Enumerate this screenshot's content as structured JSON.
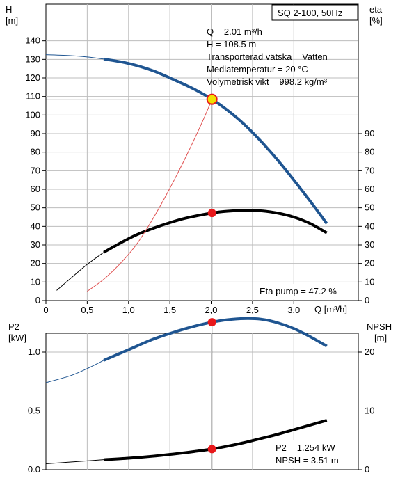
{
  "chart_data": [
    {
      "type": "line",
      "title": "SQ 2-100, 50Hz",
      "y_left": {
        "label_top": "H",
        "label_unit": "[m]",
        "ticks": [
          0,
          10,
          20,
          30,
          40,
          50,
          60,
          70,
          80,
          90,
          100,
          110,
          120,
          130,
          140
        ],
        "lim": [
          0,
          150
        ]
      },
      "y_right": {
        "label_top": "eta",
        "label_unit": "[%]",
        "ticks": [
          0,
          10,
          20,
          30,
          40,
          50,
          60,
          70,
          80,
          90
        ],
        "lim": [
          0,
          150
        ]
      },
      "x": {
        "label": "Q [m³/h]",
        "ticks": [
          "0",
          "0,5",
          "1,0",
          "1,5",
          "2,0",
          "2,5",
          "3,0"
        ],
        "tick_values": [
          0,
          0.5,
          1.0,
          1.5,
          2.0,
          2.5,
          3.0
        ],
        "lim": [
          0,
          3.45
        ]
      },
      "info_lines": [
        "Q = 2.01 m³/h",
        "H = 108.5 m",
        "Transporterad vätska = Vatten",
        "Mediatemperatur = 20 °C",
        "Volymetrisk vikt = 998.2 kg/m³"
      ],
      "bottom_note": "Eta pump = 47.2 %",
      "operating_point": {
        "q": 2.01,
        "h": 108.5,
        "eta": 47.2
      },
      "series": [
        {
          "key": "head_thin",
          "color": "#1f5591",
          "x": [
            0,
            0.3,
            0.5,
            0.7
          ],
          "y": [
            132.5,
            132.0,
            131.3,
            130.2
          ]
        },
        {
          "key": "head",
          "color": "#1f5591",
          "x": [
            0.7,
            1.0,
            1.3,
            1.6,
            1.8,
            2.01,
            2.2,
            2.4,
            2.6,
            2.8,
            3.0,
            3.2,
            3.4
          ],
          "y": [
            130.2,
            127.8,
            123.8,
            118.0,
            113.8,
            108.5,
            102.5,
            95.0,
            86.0,
            76.0,
            65.0,
            53.5,
            41.5
          ]
        },
        {
          "key": "eta_thin",
          "color": "#000000",
          "x": [
            0.13,
            0.3,
            0.5,
            0.7
          ],
          "y": [
            5.5,
            12.0,
            19.5,
            26.0
          ]
        },
        {
          "key": "eta",
          "color": "#000000",
          "x": [
            0.7,
            0.9,
            1.1,
            1.3,
            1.5,
            1.7,
            2.01,
            2.2,
            2.4,
            2.6,
            2.8,
            3.0,
            3.2,
            3.4
          ],
          "y": [
            26.0,
            31.0,
            35.5,
            39.0,
            42.0,
            44.5,
            47.2,
            48.2,
            48.6,
            48.4,
            47.2,
            45.0,
            41.5,
            36.5
          ]
        },
        {
          "key": "system",
          "color": "#e05050",
          "x": [
            0.5,
            0.7,
            0.9,
            1.1,
            1.3,
            1.5,
            1.7,
            1.9,
            2.01
          ],
          "y": [
            5.0,
            11.5,
            20.0,
            30.5,
            44.5,
            60.5,
            78.0,
            97.0,
            108.5
          ]
        }
      ]
    },
    {
      "type": "line",
      "y_left": {
        "label_top": "P2",
        "label_unit": "[kW]",
        "ticks": [
          "0.0",
          "0.5",
          "1.0"
        ],
        "tick_values": [
          0,
          0.5,
          1.0
        ],
        "lim": [
          0,
          1.4
        ]
      },
      "y_right": {
        "label_top": "NPSH",
        "label_unit": "[m]",
        "ticks": [
          "0",
          "10",
          "20"
        ],
        "tick_values": [
          0,
          10,
          20
        ],
        "lim": [
          0,
          28
        ]
      },
      "x": {
        "lim": [
          0,
          3.45
        ],
        "tick_values": [
          0,
          0.5,
          1.0,
          1.5,
          2.0,
          2.5,
          3.0
        ]
      },
      "info_lines": [
        "P2 = 1.254 kW",
        "NPSH = 3.51 m"
      ],
      "operating_point": {
        "q": 2.01,
        "p2": 1.254,
        "npsh": 3.51
      },
      "series": [
        {
          "key": "p2_thin",
          "color": "#1f5591",
          "x": [
            0,
            0.3,
            0.5,
            0.7
          ],
          "y": [
            0.74,
            0.8,
            0.86,
            0.93
          ]
        },
        {
          "key": "p2",
          "color": "#1f5591",
          "x": [
            0.7,
            1.0,
            1.3,
            1.6,
            1.8,
            2.01,
            2.2,
            2.4,
            2.6,
            2.8,
            3.0,
            3.2,
            3.4
          ],
          "y": [
            0.93,
            1.02,
            1.11,
            1.18,
            1.22,
            1.254,
            1.275,
            1.285,
            1.28,
            1.25,
            1.2,
            1.13,
            1.05
          ]
        },
        {
          "key": "npsh_thin",
          "color": "#000000",
          "x": [
            0,
            0.3,
            0.5,
            0.7
          ],
          "y": [
            1.0,
            1.3,
            1.5,
            1.7
          ]
        },
        {
          "key": "npsh",
          "color": "#000000",
          "x": [
            0.7,
            1.0,
            1.3,
            1.6,
            1.8,
            2.01,
            2.2,
            2.4,
            2.6,
            2.8,
            3.0,
            3.2,
            3.4
          ],
          "y": [
            1.7,
            1.95,
            2.3,
            2.75,
            3.1,
            3.51,
            4.0,
            4.6,
            5.3,
            6.0,
            6.8,
            7.6,
            8.4
          ]
        }
      ]
    }
  ],
  "style": {
    "head_color": "#1f5591",
    "eta_color": "#000000",
    "system_color": "#e05050",
    "marker_color": "#e8181b",
    "op_marker_fill": "#f2e000",
    "grid_color": "#bdbdbd"
  }
}
